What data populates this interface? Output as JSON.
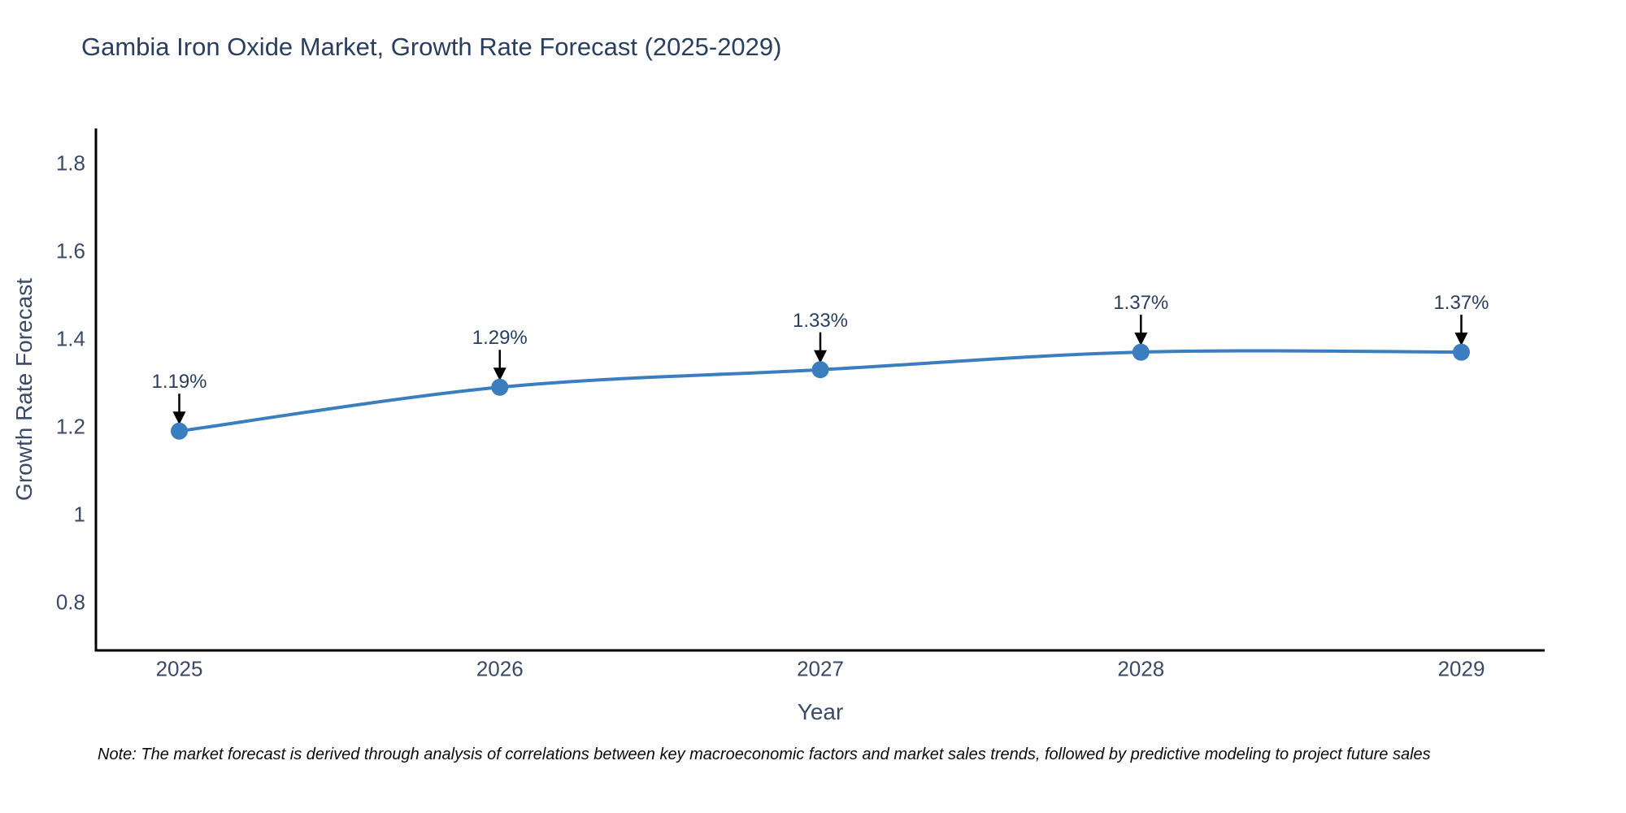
{
  "title": "Gambia Iron Oxide Market, Growth Rate Forecast (2025-2029)",
  "note": "Note: The market forecast is derived through analysis of correlations between key macroeconomic factors and market sales trends, followed by predictive modeling to project future sales",
  "chart_data": {
    "type": "line",
    "title": "Gambia Iron Oxide Market, Growth Rate Forecast (2025-2029)",
    "xlabel": "Year",
    "ylabel": "Growth Rate Forecast",
    "x": [
      2025,
      2026,
      2027,
      2028,
      2029
    ],
    "series": [
      {
        "name": "Growth Rate Forecast",
        "values": [
          1.19,
          1.29,
          1.33,
          1.37,
          1.37
        ]
      }
    ],
    "point_labels": [
      "1.19%",
      "1.29%",
      "1.33%",
      "1.37%",
      "1.37%"
    ],
    "xticks": [
      2025,
      2026,
      2027,
      2028,
      2029
    ],
    "yticks": [
      0.8,
      1,
      1.2,
      1.4,
      1.6,
      1.8
    ],
    "xlim": [
      2024.74,
      2029.26
    ],
    "ylim": [
      0.69,
      1.88
    ],
    "grid": false,
    "legend": false,
    "line_shape": "spline",
    "annotations_have_arrows": true
  },
  "colors": {
    "background": "#ffffff",
    "title_text": "#2a3f5f",
    "tick_text": "#3b4a66",
    "annotation_text": "#2a3f5f",
    "note_text": "#0b0b0b",
    "line": "#3a7ebf",
    "marker": "#3a7ebf",
    "arrow": "#000000",
    "axis_line": "#000000"
  }
}
